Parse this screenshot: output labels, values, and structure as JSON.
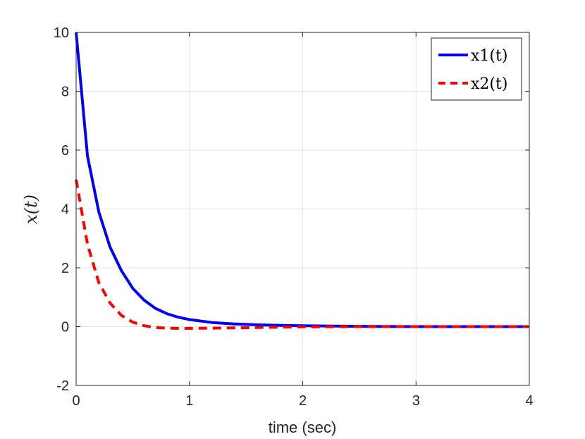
{
  "chart_data": {
    "type": "line",
    "xlabel": "time (sec)",
    "ylabel": "x(t)",
    "xlim": [
      0,
      4
    ],
    "ylim": [
      -2,
      10
    ],
    "xticks": [
      "0",
      "1",
      "2",
      "3",
      "4"
    ],
    "yticks": [
      "-2",
      "0",
      "2",
      "4",
      "6",
      "8",
      "10"
    ],
    "grid": true,
    "legend_position": "top-right",
    "x": [
      0,
      0.1,
      0.2,
      0.3,
      0.4,
      0.5,
      0.6,
      0.7,
      0.8,
      0.9,
      1.0,
      1.2,
      1.4,
      1.6,
      1.8,
      2.0,
      2.5,
      3.0,
      3.5,
      4.0
    ],
    "series": [
      {
        "name": "x1(t)",
        "color": "#0000ff",
        "style": "solid",
        "values": [
          10,
          5.8,
          3.9,
          2.7,
          1.9,
          1.3,
          0.9,
          0.62,
          0.44,
          0.32,
          0.24,
          0.14,
          0.09,
          0.06,
          0.04,
          0.03,
          0.01,
          0.0,
          0.0,
          0.0
        ]
      },
      {
        "name": "x2(t)",
        "color": "#ff0000",
        "style": "dashed",
        "values": [
          5,
          2.8,
          1.5,
          0.8,
          0.38,
          0.15,
          0.03,
          -0.03,
          -0.05,
          -0.06,
          -0.06,
          -0.05,
          -0.04,
          -0.03,
          -0.02,
          -0.01,
          0.0,
          0.0,
          0.0,
          0.0
        ]
      }
    ]
  }
}
